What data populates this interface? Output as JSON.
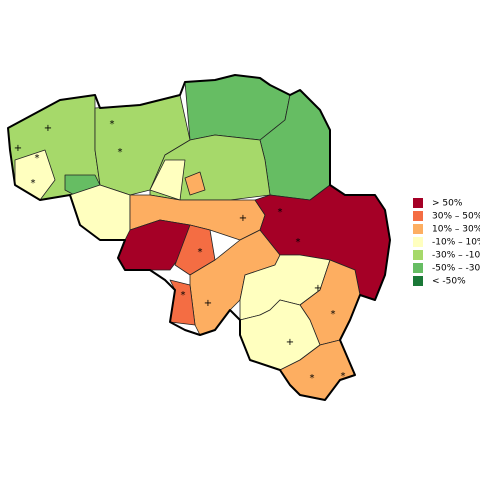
{
  "legend": {
    "items": [
      {
        "label": ">   50%",
        "color": "#a50026"
      },
      {
        "label": "30%  –   50%",
        "color": "#f46d43"
      },
      {
        "label": "10%  –   30%",
        "color": "#fdae61"
      },
      {
        "label": "-10%  –   10%",
        "color": "#ffffbf"
      },
      {
        "label": "-30%  –  -10%",
        "color": "#a6d96a"
      },
      {
        "label": "-50%  –  -30%",
        "color": "#66bd63"
      },
      {
        "label": "< -50%",
        "color": "#1a7837"
      }
    ]
  },
  "markers": [
    "+",
    "+",
    "*",
    "*",
    "*",
    "*",
    "*",
    "+",
    "+",
    "*",
    "*",
    "*",
    "+",
    "*",
    "+",
    "*",
    "*"
  ]
}
